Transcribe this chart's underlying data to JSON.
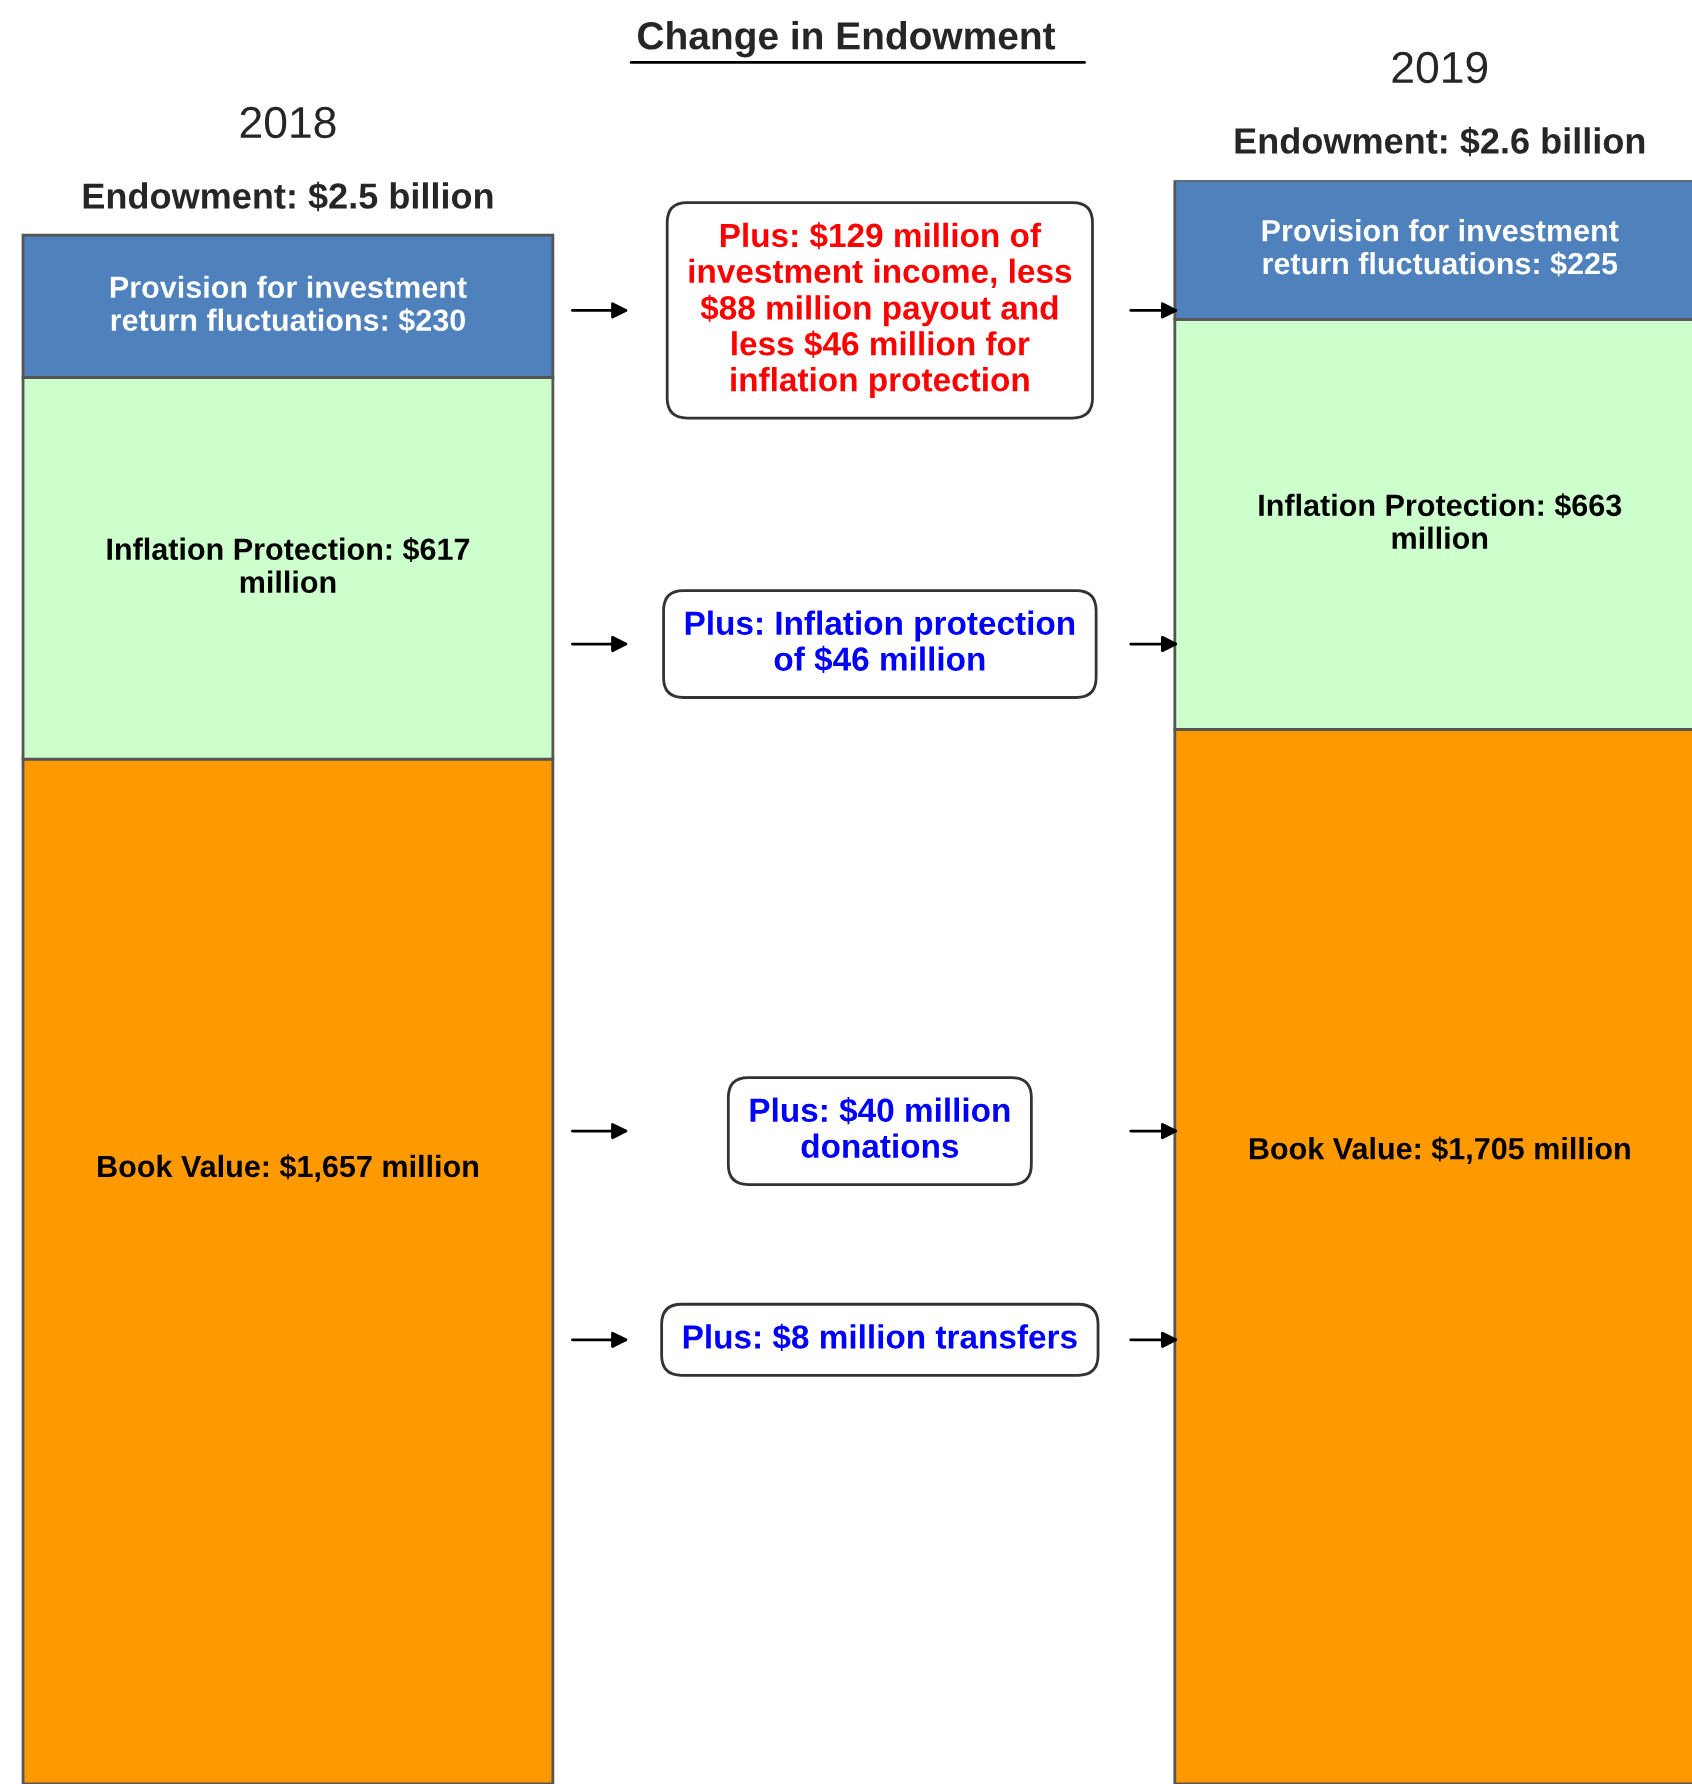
{
  "chart_data": {
    "type": "bar",
    "title": "Change in Endowment",
    "categories": [
      "2018",
      "2019"
    ],
    "stacked": true,
    "series": [
      {
        "color": "#ff9900",
        "values": [
          1657,
          1705
        ],
        "value_labels": [
          "Book Value: $1,657 million",
          "Book Value: $1,705 million"
        ]
      },
      {
        "color": "#ccffcc",
        "values": [
          617,
          663
        ],
        "value_labels": [
          "Inflation Protection: $617 million",
          "Inflation Protection: $663 million"
        ]
      },
      {
        "color": "#4f81bd",
        "values": [
          230,
          225
        ],
        "value_labels": [
          "Provision for investment return fluctuations: $230",
          "Provision for investment return fluctuations: $225"
        ]
      }
    ],
    "totals": [
      "Endowment: $2.5 billion",
      "Endowment: $2.6 billion"
    ],
    "annotations": [
      "Plus: $129 million of investment income, less $88 million payout and less $46 million for inflation protection",
      "Plus: Inflation protection of $46 million",
      "Plus: $40 million donations",
      "Plus: $8 million transfers"
    ]
  }
}
